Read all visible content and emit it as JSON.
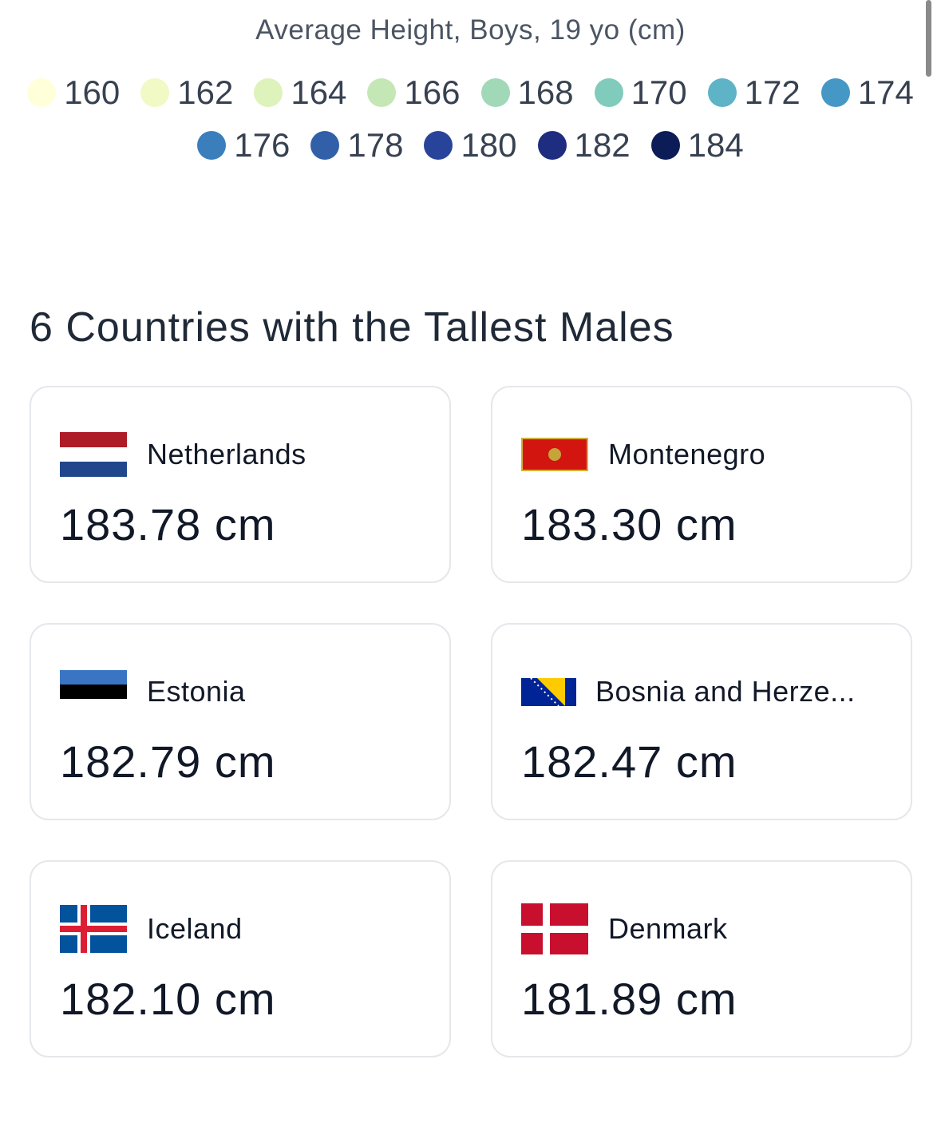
{
  "legend": {
    "title": "Average Height, Boys, 19 yo (cm)",
    "items": [
      {
        "label": "160",
        "color": "#ffffd9"
      },
      {
        "label": "162",
        "color": "#f1f9c4"
      },
      {
        "label": "164",
        "color": "#def2bc"
      },
      {
        "label": "166",
        "color": "#c4e7b5"
      },
      {
        "label": "168",
        "color": "#a1d9b8"
      },
      {
        "label": "170",
        "color": "#80cbbb"
      },
      {
        "label": "172",
        "color": "#5eb3c6"
      },
      {
        "label": "174",
        "color": "#4598c6"
      },
      {
        "label": "176",
        "color": "#3a7fbc"
      },
      {
        "label": "178",
        "color": "#3160a9"
      },
      {
        "label": "180",
        "color": "#28449a"
      },
      {
        "label": "182",
        "color": "#1e2d7f"
      },
      {
        "label": "184",
        "color": "#0c1c57"
      }
    ]
  },
  "section": {
    "title": "6 Countries with the Tallest Males",
    "cards": [
      {
        "country": "Netherlands",
        "value": "183.78 cm"
      },
      {
        "country": "Montenegro",
        "value": "183.30 cm"
      },
      {
        "country": "Estonia",
        "value": "182.79 cm"
      },
      {
        "country": "Bosnia and Herze...",
        "value": "182.47 cm"
      },
      {
        "country": "Iceland",
        "value": "182.10 cm"
      },
      {
        "country": "Denmark",
        "value": "181.89 cm"
      }
    ]
  }
}
